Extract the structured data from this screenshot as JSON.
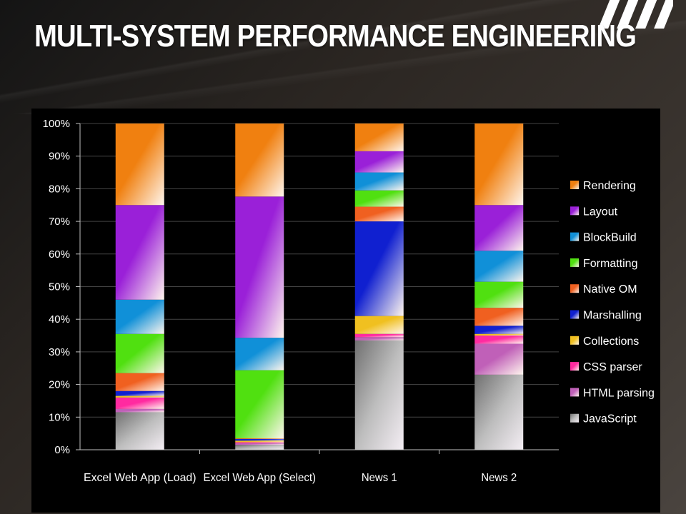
{
  "slide": {
    "title": "MULTI-SYSTEM PERFORMANCE ENGINEERING"
  },
  "chart_data": {
    "type": "bar",
    "stacked": true,
    "percent_stacked": true,
    "categories": [
      "Excel Web App (Load)",
      "Excel Web App (Select)",
      "News 1",
      "News 2"
    ],
    "ylim": [
      0,
      100
    ],
    "yticks": [
      "0%",
      "10%",
      "20%",
      "30%",
      "40%",
      "50%",
      "60%",
      "70%",
      "80%",
      "90%",
      "100%"
    ],
    "grid": true,
    "legend_position": "right",
    "series": [
      {
        "name": "JavaScript",
        "color": "#c8c8c8",
        "values": [
          11.5,
          1.5,
          33.5,
          23.0
        ]
      },
      {
        "name": "HTML parsing",
        "color": "#c060b8",
        "values": [
          1.0,
          0.5,
          1.0,
          9.5
        ]
      },
      {
        "name": "CSS parser",
        "color": "#ff2aa0",
        "values": [
          3.5,
          0.3,
          1.0,
          2.5
        ]
      },
      {
        "name": "Collections",
        "color": "#f0c020",
        "values": [
          0.5,
          0.5,
          5.5,
          0.5
        ]
      },
      {
        "name": "Marshalling",
        "color": "#1020d0",
        "values": [
          1.5,
          0.5,
          29.0,
          2.5
        ]
      },
      {
        "name": "Native OM",
        "color": "#f06020",
        "values": [
          5.5,
          0.2,
          4.5,
          5.5
        ]
      },
      {
        "name": "Formatting",
        "color": "#50e010",
        "values": [
          12.0,
          21.0,
          5.0,
          8.0
        ]
      },
      {
        "name": "BlockBuild",
        "color": "#1090d8",
        "values": [
          10.5,
          10.0,
          5.5,
          9.5
        ]
      },
      {
        "name": "Layout",
        "color": "#9a20d8",
        "values": [
          29.0,
          43.5,
          6.5,
          14.0
        ]
      },
      {
        "name": "Rendering",
        "color": "#f08010",
        "values": [
          25.0,
          22.5,
          8.5,
          25.0
        ]
      }
    ]
  }
}
